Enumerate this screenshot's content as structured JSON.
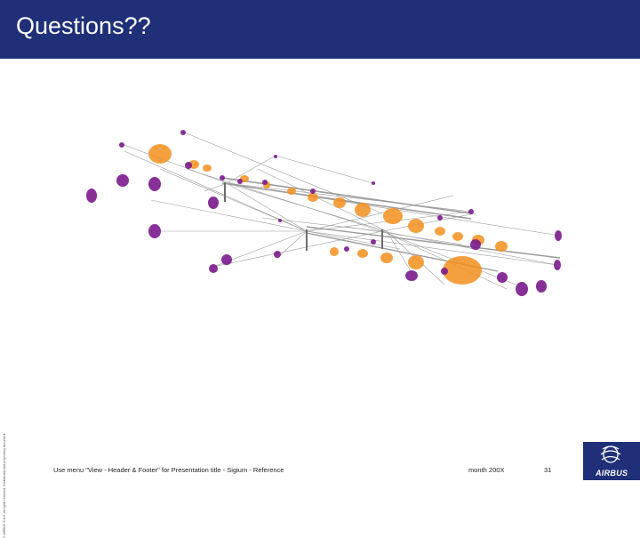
{
  "slide": {
    "title": "Questions??",
    "side_note": "© AIRBUS S.A.S. All rights reserved. Confidential and proprietary document.",
    "footer": {
      "left": "Use menu \"View - Header & Footer\" for Presentation title - Sigium - Reference",
      "date": "month 200X",
      "page": "31"
    },
    "logo_text": "AIRBUS"
  },
  "colors": {
    "header": "#1f2f78",
    "purple": "#7b1a8c",
    "orange": "#f4901e",
    "lines": "#8a8a8a"
  },
  "visualization": {
    "content": "network graph of orange and purple point clusters"
  }
}
